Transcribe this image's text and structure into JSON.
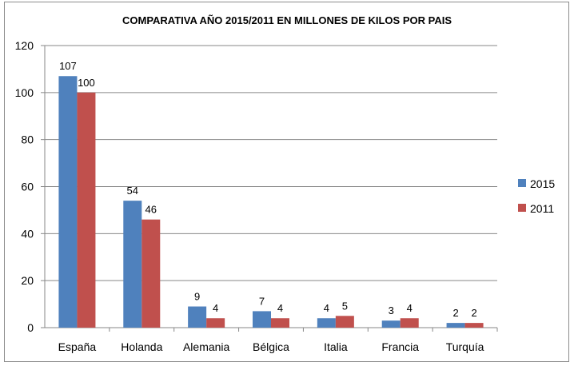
{
  "chart_data": {
    "type": "bar",
    "title": "COMPARATIVA AÑO 2015/2011 EN MILLONES DE KILOS POR PAIS",
    "categories": [
      "España",
      "Holanda",
      "Alemania",
      "Bélgica",
      "Italia",
      "Francia",
      "Turquía"
    ],
    "series": [
      {
        "name": "2015",
        "values": [
          107,
          54,
          9,
          7,
          4,
          3,
          2
        ],
        "color": "#4F81BD"
      },
      {
        "name": "2011",
        "values": [
          100,
          46,
          4,
          4,
          5,
          4,
          2
        ],
        "color": "#C0504D"
      }
    ],
    "ylim": [
      0,
      120
    ],
    "yticks": [
      0,
      20,
      40,
      60,
      80,
      100,
      120
    ],
    "grid": true,
    "legend_position": "right"
  }
}
